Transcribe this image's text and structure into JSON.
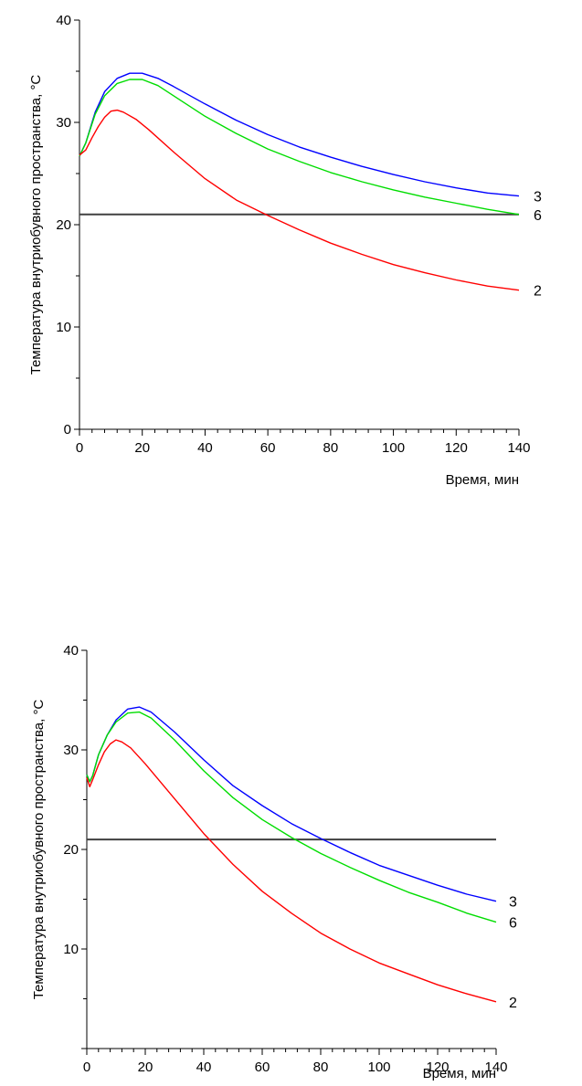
{
  "chart_data": [
    {
      "type": "line",
      "xlabel": "Время, мин",
      "ylabel": "Температура внутриобувного пространства, °С",
      "xlim": [
        0,
        140
      ],
      "ylim": [
        0,
        40
      ],
      "x_ticks": [
        0,
        20,
        40,
        60,
        80,
        100,
        120,
        140
      ],
      "y_ticks": [
        0,
        10,
        20,
        30,
        40
      ],
      "grid": false,
      "legend": "none",
      "reference_line": {
        "y": 21,
        "color": "#404040"
      },
      "series": [
        {
          "name": "3",
          "color": "#0000ff",
          "x": [
            0,
            2,
            5,
            8,
            12,
            16,
            20,
            25,
            30,
            40,
            50,
            60,
            70,
            80,
            90,
            100,
            110,
            120,
            130,
            140
          ],
          "y": [
            26.7,
            28,
            31,
            33,
            34.3,
            34.8,
            34.8,
            34.3,
            33.5,
            31.8,
            30.2,
            28.8,
            27.6,
            26.6,
            25.7,
            24.9,
            24.2,
            23.6,
            23.1,
            22.8
          ]
        },
        {
          "name": "6",
          "color": "#00dd00",
          "x": [
            0,
            2,
            5,
            8,
            12,
            16,
            20,
            25,
            30,
            40,
            50,
            60,
            70,
            80,
            90,
            100,
            110,
            120,
            130,
            140
          ],
          "y": [
            26.7,
            28,
            30.8,
            32.6,
            33.8,
            34.2,
            34.2,
            33.6,
            32.6,
            30.6,
            28.9,
            27.4,
            26.2,
            25.1,
            24.2,
            23.4,
            22.7,
            22.1,
            21.5,
            21.0
          ]
        },
        {
          "name": "2",
          "color": "#ff0000",
          "x": [
            0,
            2,
            4,
            6,
            8,
            10,
            12,
            14,
            18,
            22,
            30,
            40,
            50,
            60,
            70,
            80,
            90,
            100,
            110,
            120,
            130,
            140
          ],
          "y": [
            26.8,
            27.3,
            28.5,
            29.6,
            30.5,
            31.1,
            31.2,
            31.0,
            30.3,
            29.3,
            27.1,
            24.5,
            22.4,
            20.9,
            19.5,
            18.2,
            17.1,
            16.1,
            15.3,
            14.6,
            14.0,
            13.6
          ]
        }
      ]
    },
    {
      "type": "line",
      "xlabel": "Время, мин",
      "ylabel": "Температура внутриобувного пространства, °С",
      "xlim": [
        0,
        140
      ],
      "ylim": [
        0,
        40
      ],
      "x_ticks": [
        0,
        20,
        40,
        60,
        80,
        100,
        120,
        140
      ],
      "y_ticks": [
        10,
        20,
        30,
        40
      ],
      "grid": false,
      "legend": "none",
      "reference_line": {
        "y": 21,
        "color": "#404040"
      },
      "series": [
        {
          "name": "3",
          "color": "#0000ff",
          "x": [
            0,
            1,
            2,
            4,
            7,
            10,
            14,
            18,
            22,
            30,
            40,
            50,
            60,
            70,
            80,
            90,
            100,
            110,
            120,
            130,
            140
          ],
          "y": [
            27.5,
            26.8,
            27.4,
            29.5,
            31.5,
            33,
            34.1,
            34.3,
            33.8,
            31.8,
            29.0,
            26.4,
            24.4,
            22.6,
            21.1,
            19.7,
            18.4,
            17.4,
            16.4,
            15.5,
            14.8
          ]
        },
        {
          "name": "6",
          "color": "#00dd00",
          "x": [
            0,
            1,
            2,
            4,
            7,
            10,
            14,
            18,
            22,
            30,
            40,
            50,
            60,
            70,
            80,
            90,
            100,
            110,
            120,
            130,
            140
          ],
          "y": [
            27.5,
            26.8,
            27.4,
            29.5,
            31.5,
            32.8,
            33.7,
            33.8,
            33.2,
            31.0,
            27.9,
            25.2,
            23.0,
            21.2,
            19.6,
            18.2,
            16.9,
            15.7,
            14.7,
            13.6,
            12.7
          ]
        },
        {
          "name": "2",
          "color": "#ff0000",
          "x": [
            0,
            1,
            2,
            4,
            6,
            8,
            10,
            12,
            15,
            20,
            30,
            40,
            50,
            60,
            70,
            80,
            90,
            100,
            110,
            120,
            130,
            140
          ],
          "y": [
            27.2,
            26.3,
            27.0,
            28.5,
            29.8,
            30.6,
            31.0,
            30.8,
            30.2,
            28.6,
            25.1,
            21.6,
            18.5,
            15.8,
            13.6,
            11.6,
            10.0,
            8.6,
            7.5,
            6.4,
            5.5,
            4.7
          ]
        }
      ]
    }
  ]
}
